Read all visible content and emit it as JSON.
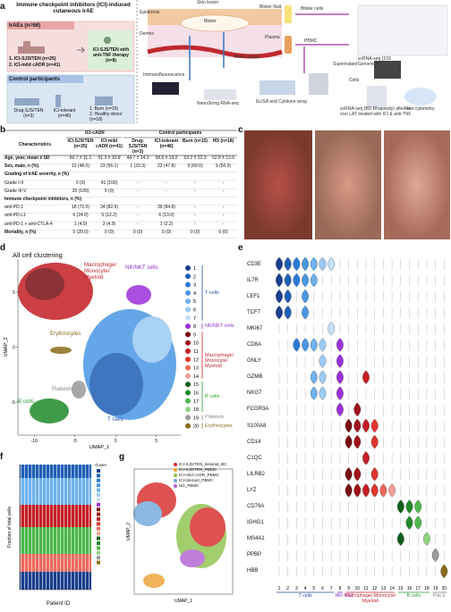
{
  "panel_labels": [
    "a",
    "b",
    "c",
    "d",
    "e",
    "f",
    "g"
  ],
  "panel_a": {
    "title": "Immune checkpoint inhibitors (ICI)-induced cutaneous irAE",
    "irae_header": "IrAEs (n=66)",
    "irae_groups": [
      "1. ICI-SJS/TEN (n=25)",
      "2. ICI-mild cADR (n=41)"
    ],
    "anti_tnf": "ICI-SJS/TEN with anti-TNF therapy (n=8)",
    "control_header": "Control participants",
    "controls": [
      "Drug-SJS/TEN (n=3)",
      "ICI-tolerant (n=46)",
      "1. Burn (n=15)",
      "2. Healthy donor (n=18)"
    ],
    "schematic": {
      "skin_lesion": "Skin lesion",
      "epidermis": "Epidermis",
      "dermis": "Dermis",
      "blister": "Blister",
      "blood_vessel": "Blood vessel",
      "blister_fluid": "Blister fluid",
      "blister_cells": "Blister cells",
      "plasma": "Plasma",
      "pbmc": "PBMC",
      "scrna_10x": "scRNA-seq (10X Genomics)",
      "immunofluorescence": "Immunofluorescence",
      "nanostring": "NanoString RNA-seq",
      "elisa": "ELISA and Cytokine array",
      "supernatant": "Supernatant",
      "cells": "Cells",
      "scrna_bd": "scRNA-seq (BD Rhapsody) after ex vivo LAT treated with ICI & anti-TNF",
      "flow": "Flow cytometry"
    }
  },
  "table": {
    "header_groups": [
      "ICI-cADR",
      "Control participants"
    ],
    "columns": [
      "Characteristics",
      "ICI-SJS/TEN (n=25)",
      "ICI-mild cADR (n=41)",
      "Drug-SJS/TEN (n=3)",
      "ICI-tolerant (n=46)",
      "Burn (n=15)",
      "HD (n=18)"
    ],
    "rows": [
      [
        "Age, year, mean ± SD",
        "60.7 ± 11.1",
        "61.3 ± 10.9",
        "44.7 ± 14.0",
        "58.6 ± 13.2",
        "53.2 ± 22.3",
        "52.8 ± 13.6"
      ],
      [
        "Sex, male, n (%)",
        "12 (48.0)",
        "23 (56.1)",
        "1 (33.3)",
        "22 (47.8)",
        "9 (60.0)",
        "9 (50.0)"
      ],
      [
        "Grading of irAE severity, n (%)"
      ],
      [
        "Grade I-II",
        "0 (0)",
        "41 (100)",
        "-",
        "-",
        "-",
        "-"
      ],
      [
        "Grade III-V",
        "25 (100)",
        "0 (0)",
        "-",
        "-",
        "-",
        "-"
      ],
      [
        "Immune checkpoint inhibitors, n (%)"
      ],
      [
        "anti-PD-1",
        "18 (72.0)",
        "34 (82.9)",
        "-",
        "39 (84.8)",
        "-",
        "-"
      ],
      [
        "anti-PD-L1",
        "6 (24.0)",
        "5 (12.2)",
        "-",
        "6 (13.0)",
        "-",
        "-"
      ],
      [
        "anti-PD-1 + anti-CTLA-4",
        "1 (4.0)",
        "2 (4.9)",
        "-",
        "1 (2.2)",
        "-",
        "-"
      ],
      [
        "Mortality, n (%)",
        "5 (20.0)",
        "0 (0)",
        "0 (0)",
        "0 (0)",
        "0 (0)",
        "0 (0)"
      ]
    ]
  },
  "umap": {
    "title": "All cell clustering",
    "xlabel": "UMAP_1",
    "ylabel": "UMAP_2",
    "xlim": [
      -12,
      8
    ],
    "ylim": [
      -8,
      8
    ],
    "xticks": [
      -10,
      -5,
      0,
      5
    ],
    "yticks": [
      -5,
      0,
      5
    ],
    "cluster_labels": [
      "Macrophage/ Monocyte/ Myeloid",
      "NK/NKT cells",
      "Erythrocytes",
      "Platelets",
      "B cells",
      "T cells"
    ],
    "legend": {
      "items": [
        {
          "number": 1,
          "color": "#1a3f8f"
        },
        {
          "number": 2,
          "color": "#1f5fb5"
        },
        {
          "number": 3,
          "color": "#2b7bd6"
        },
        {
          "number": 4,
          "color": "#4a97e3"
        },
        {
          "number": 5,
          "color": "#6fb2ee"
        },
        {
          "number": 6,
          "color": "#9ccbf4"
        },
        {
          "number": 7,
          "color": "#c4e0fa"
        },
        {
          "number": 8,
          "color": "#9b30d9"
        },
        {
          "number": 9,
          "color": "#7a0f14"
        },
        {
          "number": 10,
          "color": "#a0141b"
        },
        {
          "number": 11,
          "color": "#c41e24"
        },
        {
          "number": 12,
          "color": "#e0342f"
        },
        {
          "number": 13,
          "color": "#ef6a5e"
        },
        {
          "number": 14,
          "color": "#f4a096"
        },
        {
          "number": 15,
          "color": "#0f5e1a"
        },
        {
          "number": 16,
          "color": "#1f8a2a"
        },
        {
          "number": 17,
          "color": "#4cb84a"
        },
        {
          "number": 18,
          "color": "#8fd47e"
        },
        {
          "number": 19,
          "color": "#9a9a9a"
        },
        {
          "number": 20,
          "color": "#8a6d1a"
        }
      ],
      "groups": [
        {
          "name": "T cells",
          "clusters": [
            1,
            7
          ],
          "color": "#1f4e9c"
        },
        {
          "name": "NK/NKT cells",
          "clusters": [
            8,
            8
          ],
          "color": "#8b2fc9"
        },
        {
          "name": "Macrophage/ Monocyte/ Myeloid",
          "clusters": [
            9,
            14
          ],
          "color": "#c0282d"
        },
        {
          "name": "B cells",
          "clusters": [
            15,
            18
          ],
          "color": "#2e9a2e"
        },
        {
          "name": "Platelets",
          "clusters": [
            19,
            19
          ],
          "color": "#888888"
        },
        {
          "name": "Erythrocytes",
          "clusters": [
            20,
            20
          ],
          "color": "#8b6914"
        }
      ]
    }
  },
  "violin": {
    "genes": [
      "CD3E",
      "IL7R",
      "LEF1",
      "TCF7",
      "MKI67",
      "CD8A",
      "GNLY",
      "GZMB",
      "NKG7",
      "FCGR3A",
      "S100A8",
      "CD14",
      "C1QC",
      "LILRB2",
      "LYZ",
      "CD79A",
      "IGHG1",
      "MS4A1",
      "PPBP",
      "HBB"
    ],
    "expressed_in": [
      [
        1,
        2,
        3,
        4,
        5,
        6,
        7
      ],
      [
        1,
        2,
        3,
        4,
        5
      ],
      [
        1,
        2,
        4
      ],
      [
        1,
        2,
        4
      ],
      [
        7
      ],
      [
        3,
        4,
        5,
        6,
        8
      ],
      [
        6,
        8
      ],
      [
        5,
        6,
        8,
        11
      ],
      [
        5,
        6,
        8
      ],
      [
        8,
        10
      ],
      [
        9,
        10,
        11,
        12
      ],
      [
        9,
        10,
        12
      ],
      [
        11
      ],
      [
        9,
        10,
        12
      ],
      [
        9,
        10,
        11,
        12,
        13,
        14
      ],
      [
        15,
        16,
        17
      ],
      [
        16,
        17
      ],
      [
        15,
        18
      ],
      [
        19
      ],
      [
        20
      ]
    ],
    "groups": [
      {
        "name": "T cells",
        "clusters": [
          1,
          7
        ]
      },
      {
        "name": "NK/ NKT",
        "clusters": [
          8,
          8
        ]
      },
      {
        "name": "Macrophage/ Monocyte/ Myeloid",
        "clusters": [
          9,
          14
        ]
      },
      {
        "name": "B cells",
        "clusters": [
          15,
          18
        ]
      },
      {
        "name": "Plat.E.",
        "clusters": [
          19,
          20
        ]
      }
    ]
  },
  "panel_f": {
    "ylabel": "Fraction of total cells",
    "xlabel": "Patient ID",
    "legend_title": "cluster"
  },
  "panel_g": {
    "xlabel": "UMAP_1",
    "ylabel": "UMAP_2",
    "legend": [
      {
        "name": "ICI-SJS/TEN_lesional_BC",
        "color": "#d62728"
      },
      {
        "name": "ICI-SJS/TEN_PBMC",
        "color": "#f0a030"
      },
      {
        "name": "ICI-mild cADR_PBMC",
        "color": "#8bc34a"
      },
      {
        "name": "ICI-tolerant_PBMC",
        "color": "#6fa8dc"
      },
      {
        "name": "HD_PBMC",
        "color": "#b060d0"
      }
    ]
  }
}
